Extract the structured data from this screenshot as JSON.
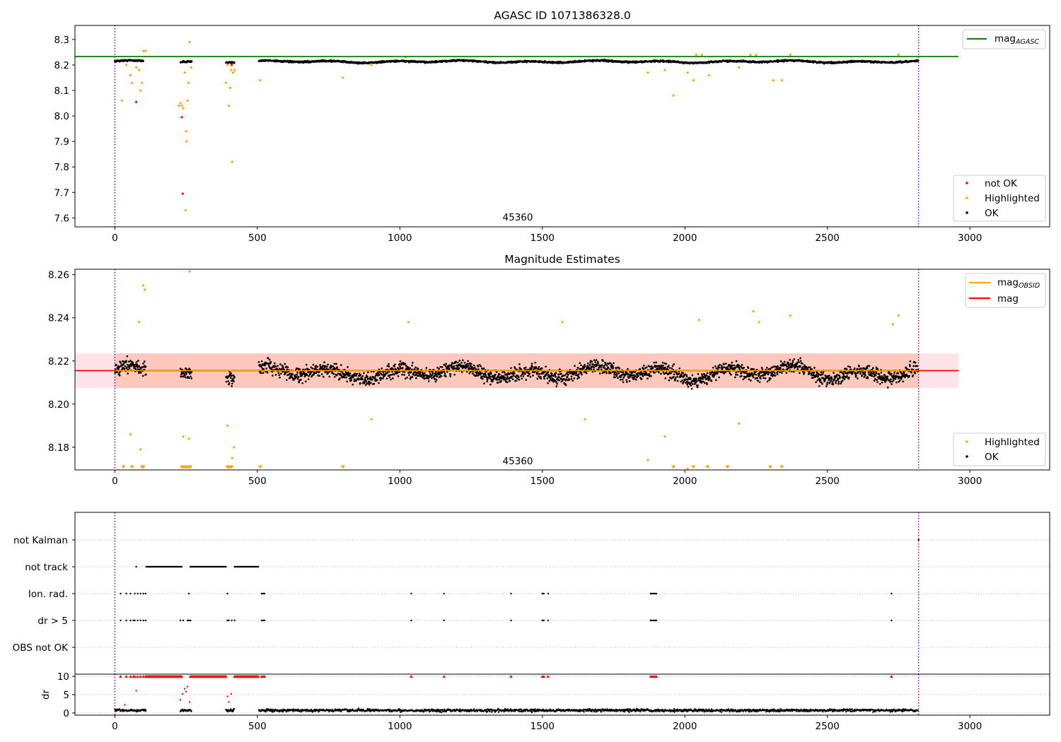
{
  "chart_data": [
    {
      "id": "top",
      "type": "scatter",
      "title": "AGASC ID 1071386328.0",
      "xlim": [
        -140,
        3280
      ],
      "ylim": [
        7.565,
        8.355
      ],
      "xticks": [
        0,
        500,
        1000,
        1500,
        2000,
        2500,
        3000
      ],
      "yticks": [
        7.6,
        7.7,
        7.8,
        7.9,
        8.0,
        8.1,
        8.2,
        8.3
      ],
      "ytick_decimals": 1,
      "obsid_label": "45360",
      "obsid_label_pos": [
        1410,
        7.6
      ],
      "vlines": [
        0,
        2820
      ],
      "hline": {
        "name": "mag",
        "sub": "AGASC",
        "value": 8.233,
        "color": "#008000",
        "x": [
          -140,
          2960
        ]
      },
      "legend": {
        "line": [
          {
            "name": "mag",
            "sub": "AGASC",
            "color": "#008000"
          }
        ],
        "points": [
          {
            "name": "not OK",
            "color": "#ff0000"
          },
          {
            "name": "Highlighted",
            "color": "#ffa500"
          },
          {
            "name": "OK",
            "color": "#000000"
          }
        ]
      },
      "ok_band": {
        "segments": [
          [
            0,
            100
          ],
          [
            230,
            270
          ],
          [
            390,
            420
          ],
          [
            505,
            2820
          ]
        ],
        "center": 8.213,
        "amplitude": 0.01,
        "spread": 0.006
      },
      "series": [
        {
          "name": "Highlighted",
          "color": "#ffa500",
          "points": [
            [
              25,
              8.06
            ],
            [
              40,
              8.2
            ],
            [
              55,
              8.16
            ],
            [
              60,
              8.13
            ],
            [
              75,
              8.19
            ],
            [
              85,
              8.18
            ],
            [
              90,
              8.1
            ],
            [
              95,
              8.13
            ],
            [
              100,
              8.255
            ],
            [
              108,
              8.255
            ],
            [
              225,
              8.04
            ],
            [
              230,
              8.05
            ],
            [
              235,
              8.04
            ],
            [
              240,
              8.03
            ],
            [
              245,
              8.17
            ],
            [
              248,
              7.63
            ],
            [
              250,
              7.94
            ],
            [
              252,
              7.9
            ],
            [
              255,
              8.06
            ],
            [
              258,
              8.13
            ],
            [
              262,
              8.29
            ],
            [
              268,
              8.19
            ],
            [
              390,
              8.13
            ],
            [
              395,
              8.2
            ],
            [
              400,
              8.04
            ],
            [
              405,
              8.11
            ],
            [
              408,
              8.18
            ],
            [
              412,
              7.82
            ],
            [
              415,
              8.17
            ],
            [
              420,
              8.18
            ],
            [
              510,
              8.14
            ],
            [
              800,
              8.15
            ],
            [
              900,
              8.2
            ],
            [
              1020,
              8.23
            ],
            [
              1870,
              8.17
            ],
            [
              1960,
              8.08
            ],
            [
              1930,
              8.18
            ],
            [
              2010,
              8.17
            ],
            [
              2030,
              8.14
            ],
            [
              2040,
              8.24
            ],
            [
              2060,
              8.24
            ],
            [
              2085,
              8.16
            ],
            [
              2190,
              8.19
            ],
            [
              2230,
              8.24
            ],
            [
              2250,
              8.24
            ],
            [
              2310,
              8.14
            ],
            [
              2340,
              8.14
            ],
            [
              2370,
              8.24
            ],
            [
              2750,
              8.24
            ]
          ]
        },
        {
          "name": "not OK",
          "color": "#ff0000",
          "points": [
            [
              75,
              8.055
            ],
            [
              235,
              7.995
            ],
            [
              238,
              7.695
            ],
            [
              410,
              8.2
            ]
          ]
        }
      ]
    },
    {
      "id": "mid",
      "type": "scatter",
      "title": "Magnitude Estimates",
      "xlim": [
        -140,
        3280
      ],
      "ylim": [
        8.1695,
        8.2625
      ],
      "xticks": [
        0,
        500,
        1000,
        1500,
        2000,
        2500,
        3000
      ],
      "yticks": [
        8.18,
        8.2,
        8.22,
        8.24,
        8.26
      ],
      "ytick_decimals": 2,
      "obsid_label": "45360",
      "obsid_label_pos": [
        1410,
        8.1725
      ],
      "vlines": [
        0,
        2820
      ],
      "hline": {
        "name": "mag",
        "value": 8.2155,
        "color": "#ff0000",
        "x": [
          -140,
          2960
        ]
      },
      "band_outer": {
        "x": [
          -140,
          2960
        ],
        "y": [
          8.2075,
          8.2235
        ],
        "color": "#ffc0cb"
      },
      "band_inner": {
        "x": [
          0,
          2820
        ],
        "y": [
          8.2075,
          8.2235
        ],
        "color": "#ffa07a"
      },
      "legend": {
        "line": [
          {
            "name": "mag",
            "sub": "OBSID",
            "color": "#ffa500"
          },
          {
            "name": "mag",
            "color": "#ff0000"
          }
        ],
        "points": [
          {
            "name": "Highlighted",
            "color": "#ffa500"
          },
          {
            "name": "OK",
            "color": "#000000"
          }
        ]
      },
      "ok_band": {
        "segments": [
          [
            0,
            110
          ],
          [
            230,
            270
          ],
          [
            390,
            420
          ],
          [
            505,
            2820
          ]
        ],
        "center": 8.2145,
        "amplitude": 0.007,
        "spread": 0.0062
      },
      "series": [
        {
          "name": "Highlighted",
          "color": "#ffa500",
          "points": [
            [
              55,
              8.186
            ],
            [
              90,
              8.179
            ],
            [
              85,
              8.238
            ],
            [
              100,
              8.255
            ],
            [
              105,
              8.253
            ],
            [
              240,
              8.185
            ],
            [
              260,
              8.184
            ],
            [
              262,
              8.2615
            ],
            [
              395,
              8.19
            ],
            [
              412,
              8.175
            ],
            [
              418,
              8.18
            ],
            [
              900,
              8.193
            ],
            [
              1030,
              8.238
            ],
            [
              1570,
              8.238
            ],
            [
              1650,
              8.193
            ],
            [
              1870,
              8.174
            ],
            [
              1930,
              8.185
            ],
            [
              2010,
              8.17
            ],
            [
              2050,
              8.239
            ],
            [
              2190,
              8.191
            ],
            [
              2240,
              8.243
            ],
            [
              2260,
              8.238
            ],
            [
              2370,
              8.241
            ],
            [
              2730,
              8.237
            ],
            [
              2750,
              8.241
            ]
          ]
        }
      ],
      "triangles": {
        "color": "#ffa500",
        "y": 8.17,
        "x": [
          30,
          60,
          95,
          100,
          235,
          240,
          245,
          250,
          255,
          260,
          265,
          395,
          400,
          405,
          410,
          510,
          800,
          1960,
          2030,
          2080,
          2150,
          2300,
          2340
        ]
      }
    },
    {
      "id": "flags",
      "type": "scatter",
      "xlim": [
        -140,
        3280
      ],
      "categories": [
        "not Kalman",
        "not track",
        "Ion. rad.",
        "dr > 5",
        "OBS not OK"
      ],
      "vlines": [
        0,
        2820
      ],
      "rows": [
        {
          "label": "not Kalman",
          "x": [
            2820
          ]
        },
        {
          "label": "not track",
          "x": [
            75
          ],
          "ranges": [
            [
              110,
              235
            ],
            [
              265,
              390
            ],
            [
              420,
              505
            ]
          ]
        },
        {
          "label": "Ion. rad.",
          "x": [
            20,
            40,
            55,
            70,
            80,
            90,
            100,
            108,
            260,
            395,
            515,
            520,
            525,
            1040,
            1155,
            1390,
            1500,
            1505,
            1520,
            1880,
            1885,
            1890,
            1895,
            1900,
            2725
          ]
        },
        {
          "label": "dr > 5",
          "x": [
            20,
            40,
            55,
            65,
            70,
            80,
            90,
            100,
            108,
            230,
            240,
            255,
            260,
            265,
            395,
            400,
            410,
            420,
            515,
            520,
            525,
            1040,
            1155,
            1390,
            1500,
            1505,
            1520,
            1880,
            1885,
            1890,
            1895,
            1900,
            2725
          ]
        },
        {
          "label": "OBS not OK",
          "x": []
        }
      ]
    },
    {
      "id": "dr",
      "type": "scatter",
      "ylabel": "dr",
      "xlim": [
        -140,
        3280
      ],
      "ylim": [
        -0.6,
        10.6
      ],
      "xticks": [
        0,
        500,
        1000,
        1500,
        2000,
        2500,
        3000
      ],
      "yticks": [
        0,
        5,
        10
      ],
      "vlines": [
        0,
        2820
      ],
      "series": [
        {
          "name": "dr > 5",
          "color": "#ff0000",
          "clip_value": 10,
          "x": [
            20,
            40,
            55,
            65,
            70,
            80,
            90,
            100,
            108,
            2725,
            1040,
            1155,
            1390,
            1500,
            1505,
            1520,
            1880,
            1885,
            1890,
            1895,
            1900,
            515,
            520,
            525
          ],
          "ranges": [
            [
              110,
              235
            ],
            [
              265,
              390
            ],
            [
              420,
              505
            ]
          ]
        },
        {
          "name": "dr mid",
          "color": "#ff0000",
          "points": [
            [
              75,
              6.1
            ],
            [
              238,
              5.2
            ],
            [
              245,
              6.6
            ],
            [
              250,
              5.8
            ],
            [
              255,
              7.2
            ],
            [
              395,
              4.5
            ],
            [
              400,
              3.0
            ],
            [
              408,
              5.2
            ],
            [
              35,
              2.2
            ],
            [
              230,
              3.6
            ],
            [
              262,
              3.0
            ]
          ]
        },
        {
          "name": "dr ok",
          "color": "#000000",
          "segments": [
            [
              0,
              110
            ],
            [
              230,
              270
            ],
            [
              390,
              420
            ],
            [
              505,
              2820
            ]
          ],
          "center": 0.7,
          "spread": 0.35
        }
      ]
    }
  ]
}
